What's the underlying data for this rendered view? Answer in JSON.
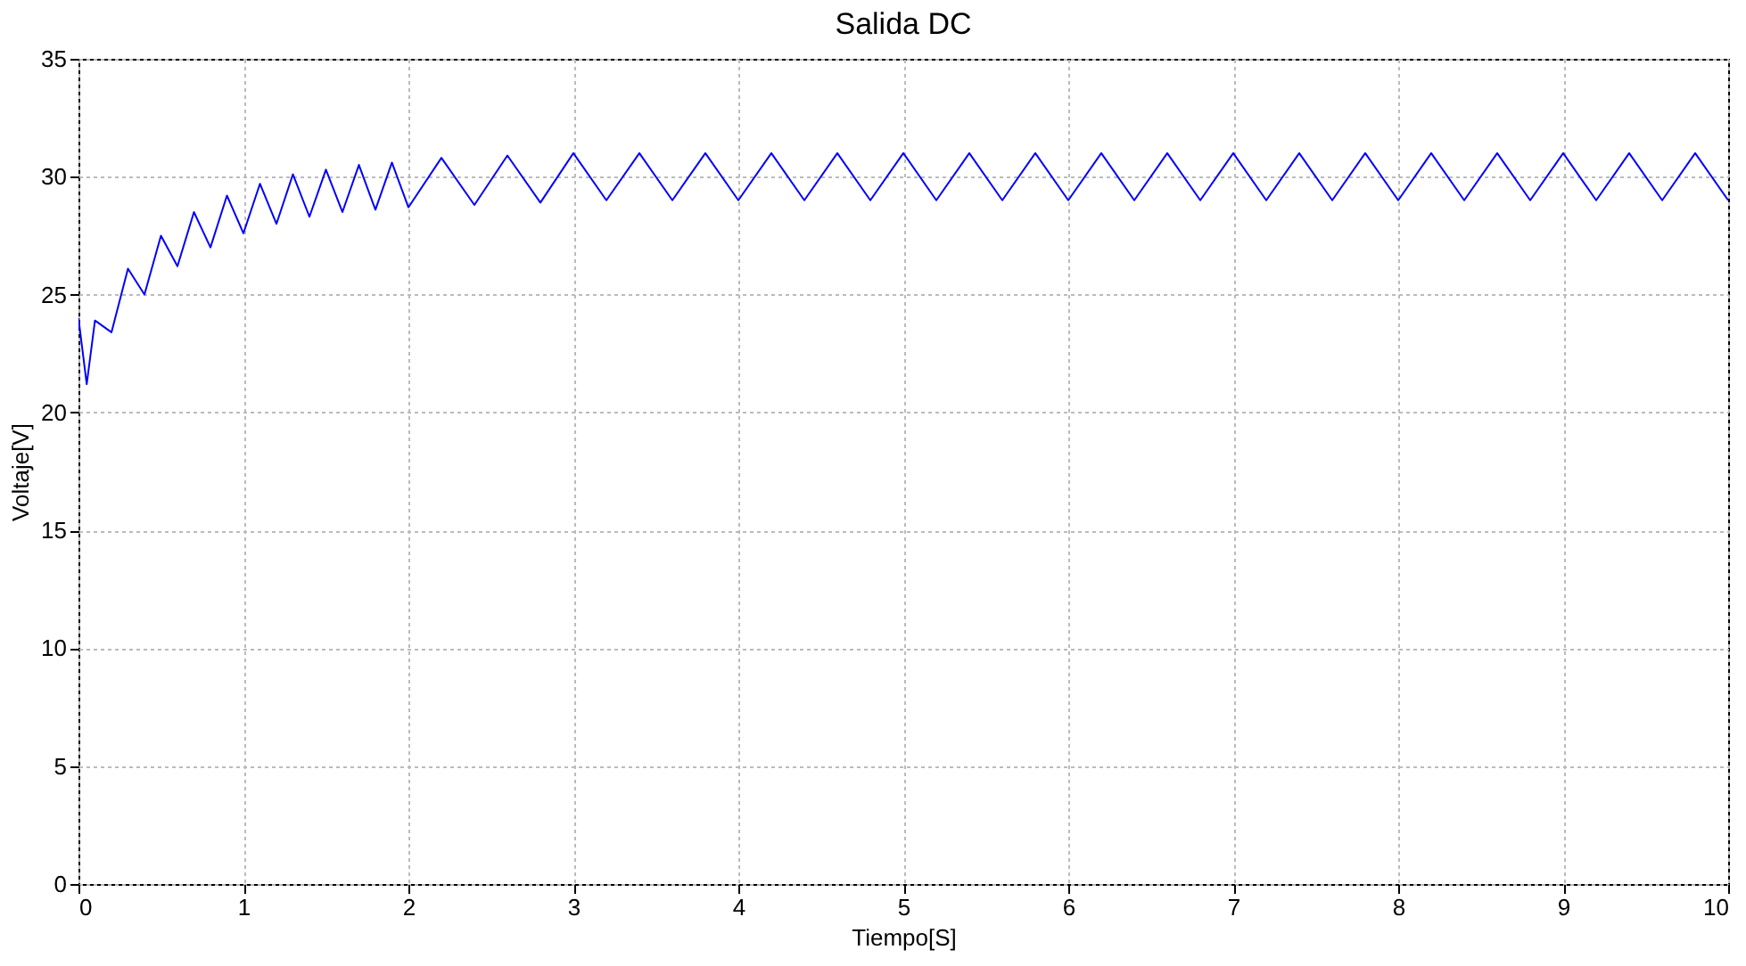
{
  "chart_data": {
    "type": "line",
    "title": "Salida DC",
    "xlabel": "Tiempo[S]",
    "ylabel": "Voltaje[V]",
    "xlim": [
      0,
      10
    ],
    "ylim": [
      0,
      35
    ],
    "xticks": [
      0,
      1,
      2,
      3,
      4,
      5,
      6,
      7,
      8,
      9,
      10
    ],
    "yticks": [
      0,
      5,
      10,
      15,
      20,
      25,
      30,
      35
    ],
    "grid": true,
    "marker": "none",
    "line_style": "solid",
    "series": [
      {
        "color": "#0000ff",
        "x": [
          0,
          0.05,
          0.1,
          0.2,
          0.3,
          0.4,
          0.5,
          0.6,
          0.7,
          0.8,
          0.9,
          1.0,
          1.1,
          1.2,
          1.3,
          1.4,
          1.5,
          1.6,
          1.7,
          1.8,
          1.9,
          2.0,
          2.2,
          2.4,
          2.6,
          2.8,
          3.0,
          3.2,
          3.4,
          3.6,
          3.8,
          4.0,
          4.2,
          4.4,
          4.6,
          4.8,
          5.0,
          5.2,
          5.4,
          5.6,
          5.8,
          6.0,
          6.2,
          6.4,
          6.6,
          6.8,
          7.0,
          7.2,
          7.4,
          7.6,
          7.8,
          8.0,
          8.2,
          8.4,
          8.6,
          8.8,
          9.0,
          9.2,
          9.4,
          9.6,
          9.8,
          10.0
        ],
        "values": [
          24.0,
          21.2,
          23.9,
          23.4,
          26.1,
          25.0,
          27.5,
          26.2,
          28.5,
          27.0,
          29.2,
          27.6,
          29.7,
          28.0,
          30.1,
          28.3,
          30.3,
          28.5,
          30.5,
          28.6,
          30.6,
          28.7,
          30.8,
          28.8,
          30.9,
          28.9,
          31.0,
          29.0,
          31.0,
          29.0,
          31.0,
          29.0,
          31.0,
          29.0,
          31.0,
          29.0,
          31.0,
          29.0,
          31.0,
          29.0,
          31.0,
          29.0,
          31.0,
          29.0,
          31.0,
          29.0,
          31.0,
          29.0,
          31.0,
          29.0,
          31.0,
          29.0,
          31.0,
          29.0,
          31.0,
          29.0,
          31.0,
          29.0,
          31.0,
          29.0,
          31.0,
          29.0
        ]
      }
    ]
  }
}
